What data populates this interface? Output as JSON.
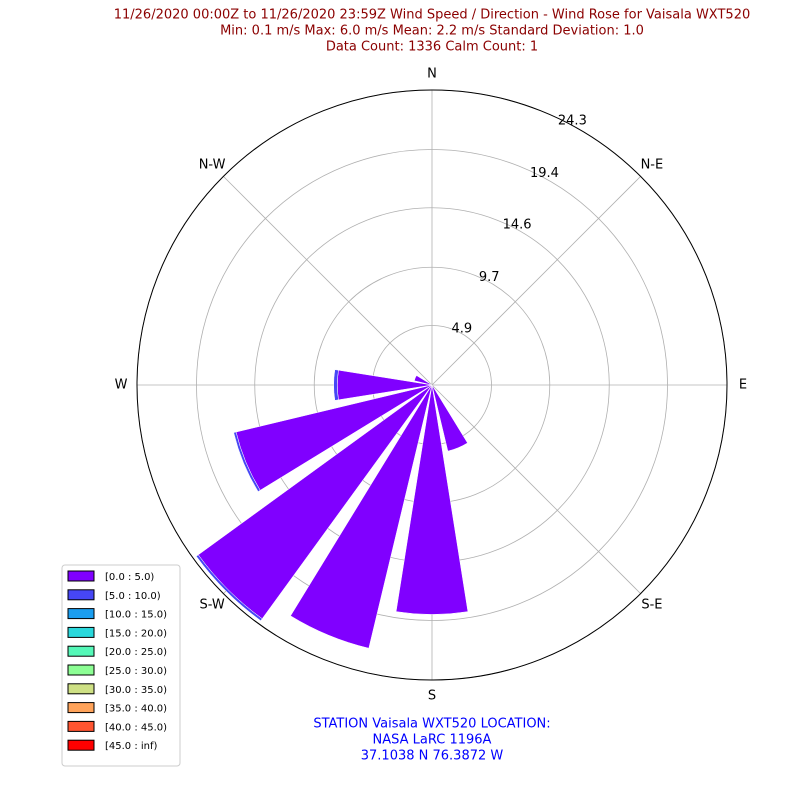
{
  "chart_data": {
    "type": "windrose",
    "title": [
      "11/26/2020 00:00Z to 11/26/2020 23:59Z Wind Speed / Direction - Wind Rose for Vaisala WXT520",
      "Min: 0.1 m/s   Max: 6.0 m/s   Mean: 2.2 m/s  Standard Deviation: 1.0",
      "Data Count: 1336  Calm Count:  1"
    ],
    "footer": [
      "STATION Vaisala WXT520 LOCATION:",
      "NASA LaRC 1196A",
      "37.1038 N 76.3872 W"
    ],
    "direction_labels": [
      "N",
      "N-E",
      "E",
      "S-E",
      "S",
      "S-W",
      "W",
      "N-W"
    ],
    "ylim": [
      0,
      24.3
    ],
    "yticks": [
      4.9,
      9.7,
      14.6,
      19.4,
      24.3
    ],
    "legend": "lower left",
    "series": [
      {
        "name": "[0.0 : 5.0)",
        "color": "#8000ff",
        "values": [
          0,
          0,
          0,
          0,
          0,
          0,
          0,
          5.6,
          18.9,
          22.3,
          23.8,
          16.6,
          7.8,
          1.5,
          0,
          0
        ]
      },
      {
        "name": "[5.0 : 10.0)",
        "color": "#4646f5",
        "values": [
          0,
          0,
          0,
          0,
          0,
          0,
          0,
          0,
          0,
          0,
          0.2,
          0.2,
          0.3,
          0,
          0,
          0
        ]
      },
      {
        "name": "[10.0 : 15.0)",
        "color": "#1a9ef0",
        "values": [
          0,
          0,
          0,
          0,
          0,
          0,
          0,
          0,
          0,
          0,
          0,
          0,
          0,
          0,
          0,
          0
        ]
      },
      {
        "name": "[15.0 : 20.0)",
        "color": "#2ad8dc",
        "values": [
          0,
          0,
          0,
          0,
          0,
          0,
          0,
          0,
          0,
          0,
          0,
          0,
          0,
          0,
          0,
          0
        ]
      },
      {
        "name": "[20.0 : 25.0)",
        "color": "#55f8b8",
        "values": [
          0,
          0,
          0,
          0,
          0,
          0,
          0,
          0,
          0,
          0,
          0,
          0,
          0,
          0,
          0,
          0
        ]
      },
      {
        "name": "[25.0 : 30.0)",
        "color": "#8cfe94",
        "values": [
          0,
          0,
          0,
          0,
          0,
          0,
          0,
          0,
          0,
          0,
          0,
          0,
          0,
          0,
          0,
          0
        ]
      },
      {
        "name": "[30.0 : 35.0)",
        "color": "#cee084",
        "values": [
          0,
          0,
          0,
          0,
          0,
          0,
          0,
          0,
          0,
          0,
          0,
          0,
          0,
          0,
          0,
          0
        ]
      },
      {
        "name": "[35.0 : 40.0)",
        "color": "#ffa35a",
        "values": [
          0,
          0,
          0,
          0,
          0,
          0,
          0,
          0,
          0,
          0,
          0,
          0,
          0,
          0,
          0,
          0
        ]
      },
      {
        "name": "[40.0 : 45.0)",
        "color": "#ff5531",
        "values": [
          0,
          0,
          0,
          0,
          0,
          0,
          0,
          0,
          0,
          0,
          0,
          0,
          0,
          0,
          0,
          0
        ]
      },
      {
        "name": "[45.0 : inf)",
        "color": "#ff0000",
        "values": [
          0,
          0,
          0,
          0,
          0,
          0,
          0,
          0,
          0,
          0,
          0,
          0,
          0,
          0,
          0,
          0
        ]
      }
    ]
  }
}
